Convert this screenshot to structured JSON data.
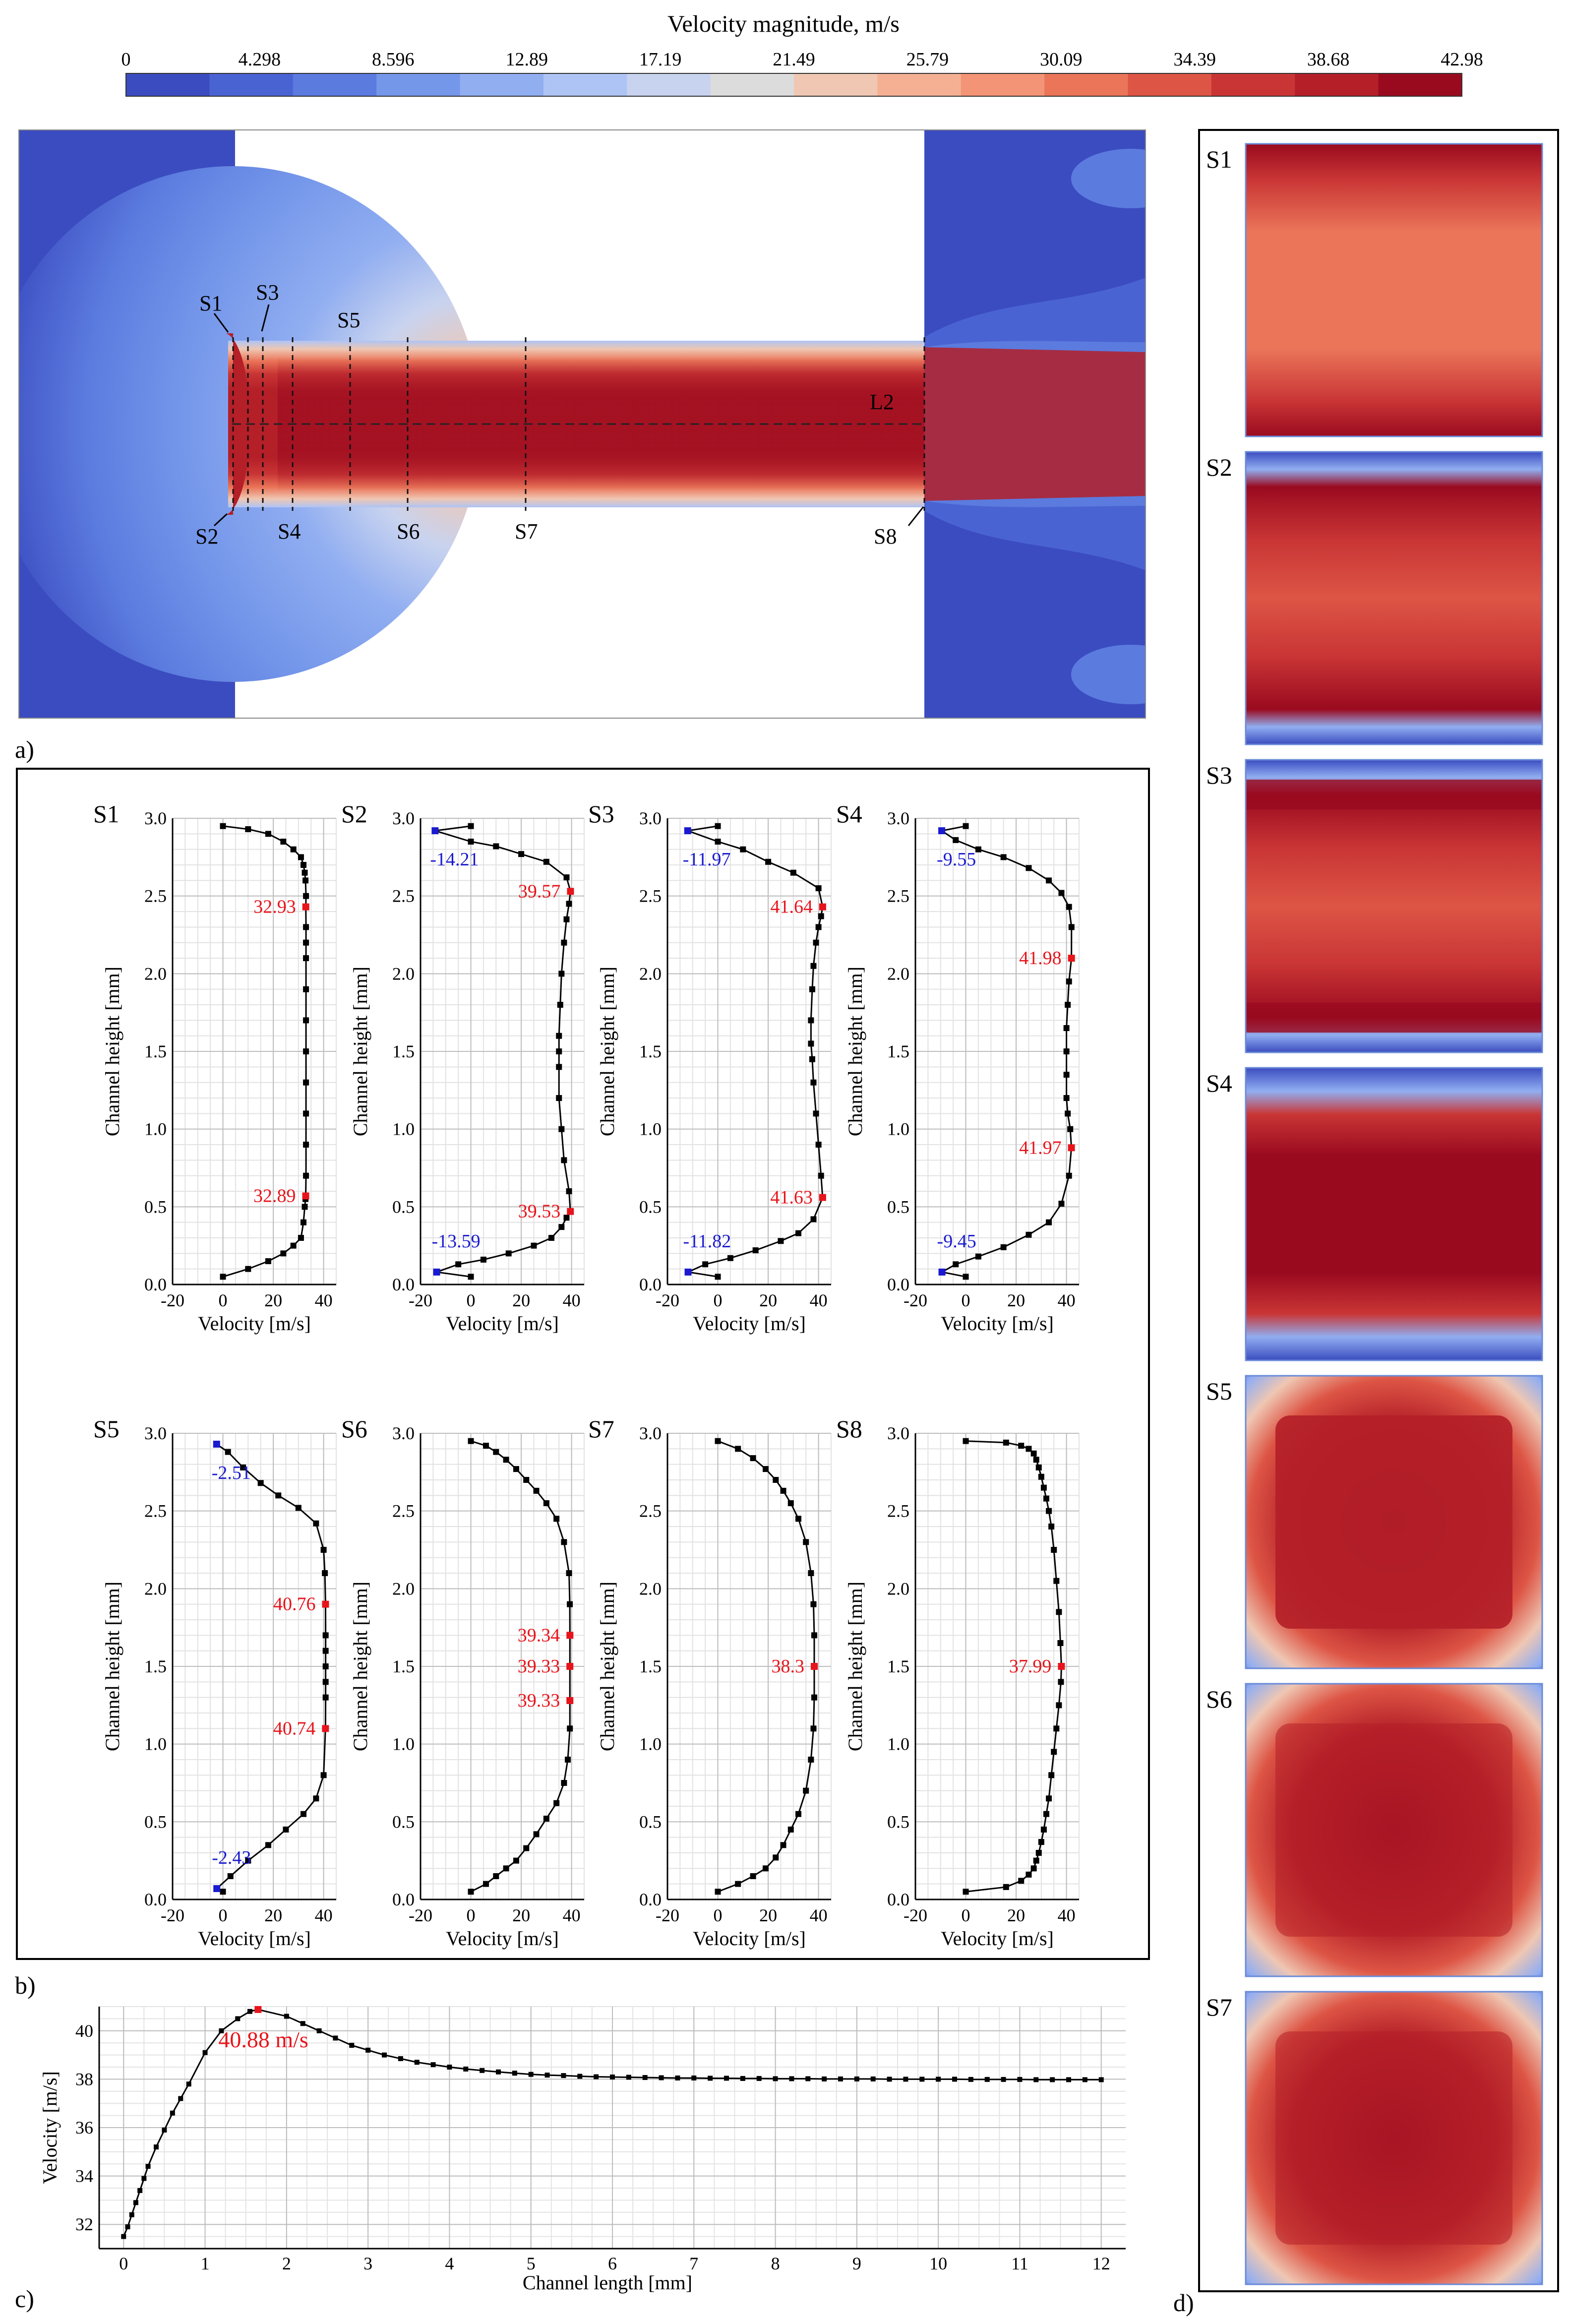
{
  "colorbar": {
    "title": "Velocity magnitude, m/s",
    "ticks": [
      "0",
      "4.298",
      "8.596",
      "12.89",
      "17.19",
      "21.49",
      "25.79",
      "30.09",
      "34.39",
      "38.68",
      "42.98"
    ],
    "colors": [
      "#3b4cc0",
      "#4a63d3",
      "#5b7bdf",
      "#7597ea",
      "#91aef1",
      "#aec4f5",
      "#c8d3ef",
      "#dddcdc",
      "#efc7b3",
      "#f5b094",
      "#f39476",
      "#ea7559",
      "#dd5545",
      "#c93535",
      "#b41f28",
      "#9a0a1f"
    ]
  },
  "panel_a": {
    "label": "a)",
    "section_labels": [
      "S1",
      "S2",
      "S3",
      "S4",
      "S5",
      "S6",
      "S7",
      "S8"
    ],
    "line_label": "L2"
  },
  "panel_b": {
    "label": "b)",
    "xlabel": "Velocity [m/s]",
    "ylabel": "Channel height [mm]"
  },
  "panel_c": {
    "label": "c)",
    "peak_label": "40.88 m/s"
  },
  "panel_d": {
    "label": "d)",
    "section_labels": [
      "S1",
      "S2",
      "S3",
      "S4",
      "S5",
      "S6",
      "S7"
    ]
  },
  "chart_data": [
    {
      "type": "line",
      "title": "S1",
      "xlabel": "Velocity [m/s]",
      "ylabel": "Channel height [mm]",
      "xlim": [
        -20,
        45
      ],
      "ylim": [
        0,
        3
      ],
      "xticks": [
        -20,
        0,
        20,
        40
      ],
      "yticks": [
        0,
        0.5,
        1,
        1.5,
        2,
        2.5,
        3
      ],
      "x": [
        0,
        10,
        18,
        24,
        28,
        31,
        32,
        32.5,
        32.8,
        32.89,
        33,
        33,
        33,
        33,
        33,
        33,
        33,
        33,
        33,
        33,
        32.93,
        33,
        32.8,
        32.5,
        32,
        31,
        28,
        24,
        18,
        10,
        0
      ],
      "y": [
        0.05,
        0.1,
        0.15,
        0.2,
        0.25,
        0.3,
        0.4,
        0.5,
        0.55,
        0.57,
        0.7,
        0.9,
        1.1,
        1.3,
        1.5,
        1.7,
        1.9,
        2.1,
        2.2,
        2.3,
        2.43,
        2.5,
        2.6,
        2.65,
        2.7,
        2.75,
        2.8,
        2.85,
        2.9,
        2.93,
        2.95
      ],
      "annotations": [
        {
          "text": "32.93",
          "x": 32.93,
          "y": 2.43,
          "color": "#e8141b"
        },
        {
          "text": "32.89",
          "x": 32.89,
          "y": 0.57,
          "color": "#e8141b"
        }
      ]
    },
    {
      "type": "line",
      "title": "S2",
      "xlabel": "Velocity [m/s]",
      "ylabel": "Channel height [mm]",
      "xlim": [
        -20,
        45
      ],
      "ylim": [
        0,
        3
      ],
      "xticks": [
        -20,
        0,
        20,
        40
      ],
      "yticks": [
        0,
        0.5,
        1,
        1.5,
        2,
        2.5,
        3
      ],
      "x": [
        0,
        -13.59,
        -5,
        5,
        15,
        25,
        32,
        36,
        38,
        39.53,
        39,
        37,
        36,
        35,
        35,
        35,
        35,
        35.5,
        36,
        37,
        38,
        39,
        39.57,
        38,
        30,
        20,
        10,
        0,
        -14.21,
        0
      ],
      "y": [
        0.05,
        0.08,
        0.13,
        0.16,
        0.2,
        0.25,
        0.3,
        0.37,
        0.43,
        0.47,
        0.6,
        0.8,
        1,
        1.2,
        1.4,
        1.5,
        1.6,
        1.8,
        2,
        2.2,
        2.35,
        2.45,
        2.53,
        2.62,
        2.72,
        2.77,
        2.82,
        2.85,
        2.92,
        2.95
      ],
      "annotations": [
        {
          "text": "39.57",
          "x": 39.57,
          "y": 2.53,
          "color": "#e8141b"
        },
        {
          "text": "39.53",
          "x": 39.53,
          "y": 0.47,
          "color": "#e8141b"
        },
        {
          "text": "-14.21",
          "x": -14.21,
          "y": 2.92,
          "color": "#1a1ad0"
        },
        {
          "text": "-13.59",
          "x": -13.59,
          "y": 0.08,
          "color": "#1a1ad0"
        }
      ]
    },
    {
      "type": "line",
      "title": "S3",
      "xlabel": "Velocity [m/s]",
      "ylabel": "Channel height [mm]",
      "xlim": [
        -20,
        45
      ],
      "ylim": [
        0,
        3
      ],
      "xticks": [
        -20,
        0,
        20,
        40
      ],
      "yticks": [
        0,
        0.5,
        1,
        1.5,
        2,
        2.5,
        3
      ],
      "x": [
        0,
        -11.82,
        -5,
        5,
        15,
        25,
        32,
        38,
        41.63,
        41,
        40,
        39,
        38,
        37.5,
        37,
        37,
        37.5,
        38,
        39,
        40,
        41,
        41.64,
        40,
        30,
        20,
        10,
        0,
        -11.97,
        0
      ],
      "y": [
        0.05,
        0.08,
        0.13,
        0.17,
        0.22,
        0.28,
        0.33,
        0.42,
        0.56,
        0.7,
        0.9,
        1.1,
        1.3,
        1.45,
        1.55,
        1.7,
        1.9,
        2.05,
        2.2,
        2.3,
        2.37,
        2.43,
        2.55,
        2.65,
        2.72,
        2.8,
        2.85,
        2.92,
        2.95
      ],
      "annotations": [
        {
          "text": "41.64",
          "x": 41.64,
          "y": 2.43,
          "color": "#e8141b"
        },
        {
          "text": "41.63",
          "x": 41.63,
          "y": 0.56,
          "color": "#e8141b"
        },
        {
          "text": "-11.97",
          "x": -11.97,
          "y": 2.92,
          "color": "#1a1ad0"
        },
        {
          "text": "-11.82",
          "x": -11.82,
          "y": 0.08,
          "color": "#1a1ad0"
        }
      ]
    },
    {
      "type": "line",
      "title": "S4",
      "xlabel": "Velocity [m/s]",
      "ylabel": "Channel height [mm]",
      "xlim": [
        -20,
        45
      ],
      "ylim": [
        0,
        3
      ],
      "xticks": [
        -20,
        0,
        20,
        40
      ],
      "yticks": [
        0,
        0.5,
        1,
        1.5,
        2,
        2.5,
        3
      ],
      "x": [
        0,
        -9.45,
        -4,
        5,
        15,
        25,
        33,
        38,
        41,
        41.97,
        41.5,
        40.5,
        40,
        40,
        40,
        40,
        40.5,
        41,
        41.98,
        42,
        41,
        38,
        33,
        25,
        15,
        5,
        -4,
        -9.55,
        0
      ],
      "y": [
        0.05,
        0.08,
        0.13,
        0.18,
        0.24,
        0.32,
        0.4,
        0.52,
        0.7,
        0.88,
        1.0,
        1.1,
        1.2,
        1.35,
        1.5,
        1.65,
        1.8,
        1.95,
        2.1,
        2.3,
        2.43,
        2.52,
        2.6,
        2.68,
        2.75,
        2.8,
        2.86,
        2.92,
        2.95
      ],
      "annotations": [
        {
          "text": "41.98",
          "x": 41.98,
          "y": 2.1,
          "color": "#e8141b"
        },
        {
          "text": "41.97",
          "x": 41.97,
          "y": 0.88,
          "color": "#e8141b"
        },
        {
          "text": "-9.55",
          "x": -9.55,
          "y": 2.92,
          "color": "#1a1ad0"
        },
        {
          "text": "-9.45",
          "x": -9.45,
          "y": 0.08,
          "color": "#1a1ad0"
        }
      ]
    },
    {
      "type": "line",
      "title": "S5",
      "xlabel": "Velocity [m/s]",
      "ylabel": "Channel height [mm]",
      "xlim": [
        -20,
        45
      ],
      "ylim": [
        0,
        3
      ],
      "xticks": [
        -20,
        0,
        20,
        40
      ],
      "yticks": [
        0,
        0.5,
        1,
        1.5,
        2,
        2.5,
        3
      ],
      "x": [
        0,
        -2.43,
        3,
        10,
        18,
        25,
        32,
        37,
        40,
        40.74,
        40.8,
        40.8,
        40.8,
        40.8,
        40.8,
        40.76,
        40.5,
        40,
        37,
        30,
        22,
        15,
        8,
        2,
        -2.51
      ],
      "y": [
        0.05,
        0.07,
        0.15,
        0.25,
        0.35,
        0.45,
        0.55,
        0.65,
        0.8,
        1.1,
        1.3,
        1.4,
        1.5,
        1.6,
        1.7,
        1.9,
        2.1,
        2.25,
        2.42,
        2.52,
        2.6,
        2.68,
        2.78,
        2.88,
        2.93
      ],
      "annotations": [
        {
          "text": "40.76",
          "x": 40.76,
          "y": 1.9,
          "color": "#e8141b"
        },
        {
          "text": "40.74",
          "x": 40.74,
          "y": 1.1,
          "color": "#e8141b"
        },
        {
          "text": "-2.51",
          "x": -2.51,
          "y": 2.93,
          "color": "#1a1ad0"
        },
        {
          "text": "-2.43",
          "x": -2.43,
          "y": 0.07,
          "color": "#1a1ad0"
        }
      ]
    },
    {
      "type": "line",
      "title": "S6",
      "xlabel": "Velocity [m/s]",
      "ylabel": "Channel height [mm]",
      "xlim": [
        -20,
        45
      ],
      "ylim": [
        0,
        3
      ],
      "xticks": [
        -20,
        0,
        20,
        40
      ],
      "yticks": [
        0,
        0.5,
        1,
        1.5,
        2,
        2.5,
        3
      ],
      "x": [
        0,
        6,
        10,
        14,
        18,
        22,
        26,
        30,
        34,
        37,
        38.5,
        39.33,
        39.33,
        39.33,
        39.34,
        39.3,
        39,
        37,
        34,
        30,
        26,
        22,
        18,
        14,
        10,
        6,
        0
      ],
      "y": [
        0.05,
        0.1,
        0.15,
        0.2,
        0.25,
        0.33,
        0.42,
        0.52,
        0.62,
        0.75,
        0.9,
        1.1,
        1.28,
        1.5,
        1.7,
        1.9,
        2.1,
        2.3,
        2.45,
        2.55,
        2.63,
        2.7,
        2.77,
        2.83,
        2.88,
        2.92,
        2.95
      ],
      "annotations": [
        {
          "text": "39.34",
          "x": 39.34,
          "y": 1.7,
          "color": "#e8141b"
        },
        {
          "text": "39.33",
          "x": 39.33,
          "y": 1.5,
          "color": "#e8141b"
        },
        {
          "text": "39.33",
          "x": 39.33,
          "y": 1.28,
          "color": "#e8141b"
        }
      ]
    },
    {
      "type": "line",
      "title": "S7",
      "xlabel": "Velocity [m/s]",
      "ylabel": "Channel height [mm]",
      "xlim": [
        -20,
        45
      ],
      "ylim": [
        0,
        3
      ],
      "xticks": [
        -20,
        0,
        20,
        40
      ],
      "yticks": [
        0,
        0.5,
        1,
        1.5,
        2,
        2.5,
        3
      ],
      "x": [
        0,
        8,
        14,
        19,
        23,
        26,
        29,
        32,
        35,
        37,
        38,
        38.3,
        38.3,
        38.3,
        38,
        37,
        35,
        32,
        29,
        26,
        23,
        19,
        14,
        8,
        0
      ],
      "y": [
        0.05,
        0.1,
        0.15,
        0.2,
        0.27,
        0.35,
        0.45,
        0.55,
        0.7,
        0.9,
        1.1,
        1.3,
        1.5,
        1.7,
        1.9,
        2.1,
        2.3,
        2.45,
        2.55,
        2.63,
        2.7,
        2.77,
        2.84,
        2.9,
        2.95
      ],
      "annotations": [
        {
          "text": "38.3",
          "x": 38.3,
          "y": 1.5,
          "color": "#e8141b"
        }
      ]
    },
    {
      "type": "line",
      "title": "S8",
      "xlabel": "Velocity [m/s]",
      "ylabel": "Channel height [mm]",
      "xlim": [
        -20,
        45
      ],
      "ylim": [
        0,
        3
      ],
      "xticks": [
        -20,
        0,
        20,
        40
      ],
      "yticks": [
        0,
        0.5,
        1,
        1.5,
        2,
        2.5,
        3
      ],
      "x": [
        0,
        16,
        22,
        25,
        27,
        28,
        29,
        30,
        31,
        32,
        33,
        34,
        35,
        36,
        37,
        37.8,
        37.99,
        37.6,
        37,
        36,
        35,
        34,
        33,
        32,
        31,
        30,
        29,
        28,
        27,
        25,
        22,
        16,
        0
      ],
      "y": [
        0.05,
        0.08,
        0.12,
        0.16,
        0.2,
        0.25,
        0.3,
        0.37,
        0.45,
        0.55,
        0.65,
        0.8,
        0.95,
        1.1,
        1.25,
        1.4,
        1.5,
        1.65,
        1.85,
        2.05,
        2.25,
        2.4,
        2.5,
        2.58,
        2.65,
        2.72,
        2.78,
        2.83,
        2.87,
        2.9,
        2.92,
        2.94,
        2.95
      ],
      "annotations": [
        {
          "text": "37.99",
          "x": 37.99,
          "y": 1.5,
          "color": "#e8141b"
        }
      ]
    },
    {
      "type": "line",
      "title": "",
      "xlabel": "Channel length [mm]",
      "ylabel": "Velocity [m/s]",
      "xlim": [
        -0.3,
        12.3
      ],
      "ylim": [
        31,
        41
      ],
      "xticks": [
        0,
        1,
        2,
        3,
        4,
        5,
        6,
        7,
        8,
        9,
        10,
        11,
        12
      ],
      "yticks": [
        32,
        34,
        36,
        38,
        40
      ],
      "x": [
        0,
        0.05,
        0.1,
        0.15,
        0.2,
        0.25,
        0.3,
        0.4,
        0.5,
        0.6,
        0.7,
        0.8,
        1,
        1.2,
        1.4,
        1.55,
        1.65,
        2,
        2.2,
        2.4,
        2.6,
        2.8,
        3,
        3.2,
        3.4,
        3.6,
        3.8,
        4,
        4.2,
        4.4,
        4.6,
        4.8,
        5,
        5.2,
        5.4,
        5.6,
        5.8,
        6,
        6.2,
        6.4,
        6.6,
        6.8,
        7,
        7.2,
        7.4,
        7.6,
        7.8,
        8,
        8.2,
        8.4,
        8.6,
        8.8,
        9,
        9.2,
        9.4,
        9.6,
        9.8,
        10,
        10.2,
        10.4,
        10.6,
        10.8,
        11,
        11.2,
        11.4,
        11.6,
        11.8,
        12
      ],
      "y": [
        31.5,
        31.9,
        32.4,
        32.9,
        33.4,
        33.9,
        34.4,
        35.2,
        35.9,
        36.6,
        37.2,
        37.8,
        39.1,
        40,
        40.5,
        40.8,
        40.88,
        40.6,
        40.3,
        40,
        39.7,
        39.4,
        39.2,
        39,
        38.85,
        38.7,
        38.6,
        38.5,
        38.42,
        38.36,
        38.3,
        38.25,
        38.2,
        38.17,
        38.15,
        38.12,
        38.1,
        38.09,
        38.08,
        38.07,
        38.06,
        38.05,
        38.05,
        38.04,
        38.04,
        38.03,
        38.03,
        38.02,
        38.02,
        38.02,
        38.01,
        38.01,
        38.01,
        38.01,
        38,
        38,
        38,
        38,
        38,
        37.99,
        37.99,
        37.99,
        37.99,
        37.98,
        37.98,
        37.98,
        37.98,
        37.98
      ],
      "annotations": [
        {
          "text": "40.88 m/s",
          "x": 1.65,
          "y": 40.88,
          "color": "#e8141b"
        }
      ]
    }
  ]
}
